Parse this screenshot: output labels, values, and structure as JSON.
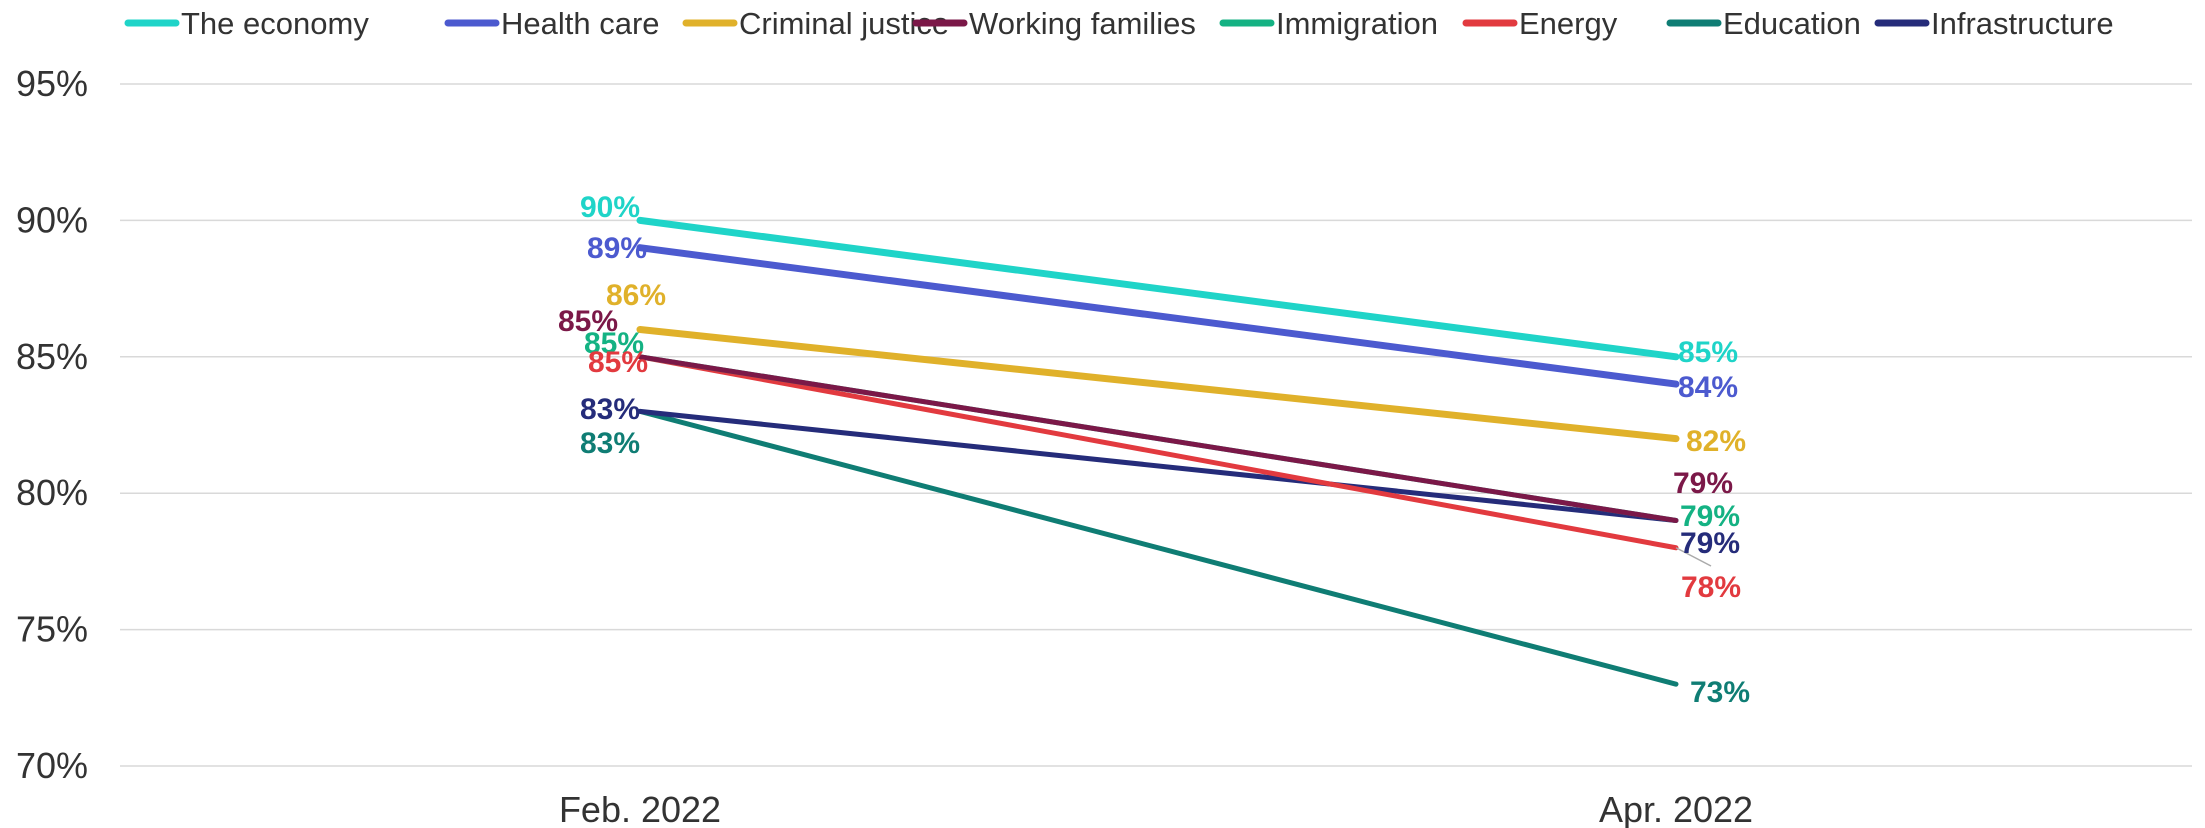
{
  "chart_data": {
    "type": "line",
    "categories": [
      "Feb. 2022",
      "Apr. 2022"
    ],
    "y_ticks": [
      "70%",
      "75%",
      "80%",
      "85%",
      "90%",
      "95%"
    ],
    "ylim": [
      70,
      95
    ],
    "y_unit": "%",
    "grid": true,
    "legend_position": "top",
    "series": [
      {
        "name": "The economy",
        "values": [
          90,
          85
        ],
        "color": "#1fd4c8",
        "labels": [
          "90%",
          "85%"
        ]
      },
      {
        "name": "Health care",
        "values": [
          89,
          84
        ],
        "color": "#4c5acf",
        "labels": [
          "89%",
          "84%"
        ]
      },
      {
        "name": "Criminal justice",
        "values": [
          86,
          82
        ],
        "color": "#e0b12a",
        "labels": [
          "86%",
          "82%"
        ]
      },
      {
        "name": "Working families",
        "values": [
          85,
          79
        ],
        "color": "#7b1848",
        "labels": [
          "85%",
          "79%"
        ]
      },
      {
        "name": "Immigration",
        "values": [
          85,
          79
        ],
        "color": "#14b283",
        "labels": [
          "85%",
          "79%"
        ]
      },
      {
        "name": "Energy",
        "values": [
          85,
          78
        ],
        "color": "#e23a3f",
        "labels": [
          "85%",
          "78%"
        ]
      },
      {
        "name": "Education",
        "values": [
          83,
          73
        ],
        "color": "#0f7d74",
        "labels": [
          "83%",
          "73%"
        ]
      },
      {
        "name": "Infrastructure",
        "values": [
          83,
          79
        ],
        "color": "#252c7a",
        "labels": [
          "83%",
          "79%"
        ]
      }
    ]
  }
}
